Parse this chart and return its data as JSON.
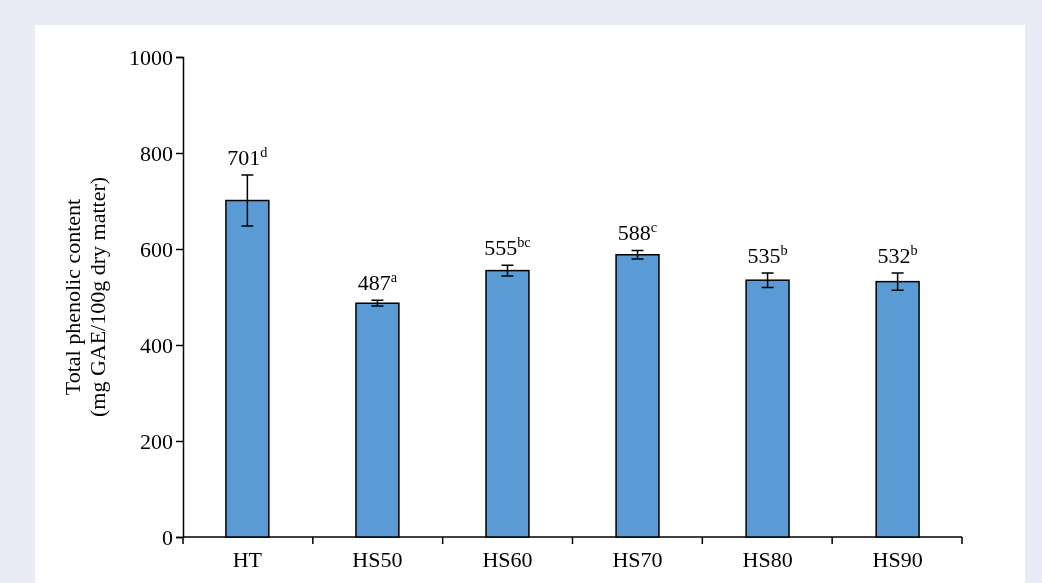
{
  "chart_data": {
    "type": "bar",
    "ylabel": "Total phenolic content\n(mg GAE/100g dry matter)",
    "categories": [
      "HT",
      "HS50",
      "HS60",
      "HS70",
      "HS80",
      "HS90"
    ],
    "values": [
      701,
      487,
      555,
      588,
      535,
      532
    ],
    "errors": [
      53,
      6,
      11,
      9,
      15,
      18
    ],
    "value_labels": [
      "701$^{d}$",
      "487$^{a}$",
      "555$^{bc}$",
      "588$^{c}$",
      "535$^{b}$",
      "532$^{b}$"
    ],
    "color": "#5b9bd5",
    "ylim": [
      0,
      1000
    ],
    "yticks": [
      0,
      200,
      400,
      600,
      800,
      1000
    ],
    "grid": false
  }
}
